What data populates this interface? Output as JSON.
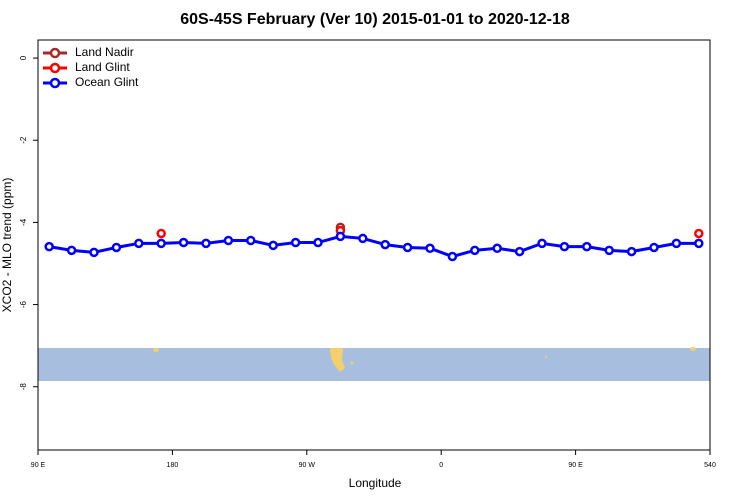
{
  "chart_data": {
    "type": "line",
    "title": "60S-45S February (Ver 10)   2015-01-01 to 2020-12-18",
    "x_label": "Longitude",
    "y_label": "XCO2 - MLO trend (ppm)",
    "xlim": [
      90,
      540
    ],
    "xticks": [
      {
        "value": 90,
        "label": "90 E"
      },
      180,
      {
        "value": 270,
        "label": "90 W"
      },
      {
        "value": 360,
        "label": "0"
      },
      {
        "value": 450,
        "label": "90 E"
      },
      540
    ],
    "ylim": [
      -9.54,
      0.44
    ],
    "yticks": [
      0,
      -2,
      -4,
      -6,
      -8
    ],
    "legend": "top-left",
    "series": [
      {
        "name": "Land Nadir",
        "color": "#a52a2a",
        "connect": false,
        "x": [
          292.5
        ],
        "values": [
          -4.12
        ]
      },
      {
        "name": "Land Glint",
        "color": "#ff0000",
        "connect": false,
        "x": [
          172.5,
          292.5,
          532.5
        ],
        "values": [
          -4.27,
          -4.2,
          -4.27
        ]
      },
      {
        "name": "Ocean Glint",
        "color": "#0000ff",
        "connect": true,
        "x": [
          97.5,
          112.5,
          127.5,
          142.5,
          157.5,
          172.5,
          187.5,
          202.5,
          217.5,
          232.5,
          247.5,
          262.5,
          277.5,
          292.5,
          307.5,
          322.5,
          337.5,
          352.5,
          367.5,
          382.5,
          397.5,
          412.5,
          427.5,
          442.5,
          457.5,
          472.5,
          487.5,
          502.5,
          517.5,
          532.5
        ],
        "values": [
          -4.59,
          -4.68,
          -4.73,
          -4.61,
          -4.51,
          -4.51,
          -4.49,
          -4.51,
          -4.44,
          -4.44,
          -4.56,
          -4.49,
          -4.49,
          -4.34,
          -4.39,
          -4.54,
          -4.61,
          -4.63,
          -4.83,
          -4.68,
          -4.63,
          -4.71,
          -4.51,
          -4.59,
          -4.59,
          -4.68,
          -4.71,
          -4.61,
          -4.51,
          -4.51
        ]
      }
    ]
  }
}
